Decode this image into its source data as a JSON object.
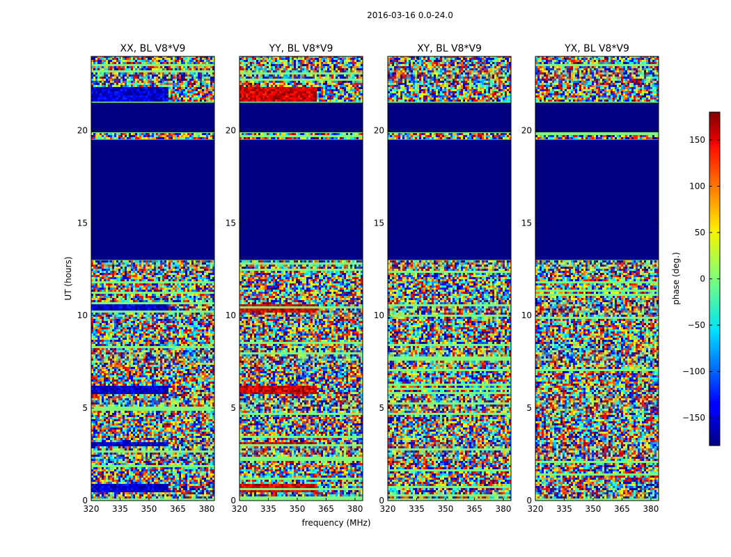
{
  "suptitle": "2016-03-16 0.0-24.0",
  "chart_data": {
    "type": "heatmap",
    "xlabel": "frequency (MHz)",
    "ylabel": "UT (hours)",
    "xlim": [
      320,
      384
    ],
    "ylim": [
      0,
      24
    ],
    "xticks": [
      "320",
      "335",
      "350",
      "365",
      "380"
    ],
    "yticks": [
      "0",
      "5",
      "10",
      "15",
      "20"
    ],
    "panels": [
      {
        "title": "XX, BL V8*V9",
        "red_band_phase": -150
      },
      {
        "title": "YY, BL V8*V9",
        "red_band_phase": 150
      },
      {
        "title": "XY, BL V8*V9",
        "red_band_phase": null
      },
      {
        "title": "YX, BL V8*V9",
        "red_band_phase": null
      }
    ],
    "flagged_ranges_hours": [
      [
        13.0,
        19.5
      ],
      [
        19.9,
        21.5
      ]
    ],
    "colorbar": {
      "label": "phase (deg.)",
      "range": [
        -180,
        180
      ],
      "ticks": [
        "150",
        "100",
        "50",
        "0",
        "−50",
        "−100",
        "−150"
      ],
      "colormap": "jet"
    }
  }
}
